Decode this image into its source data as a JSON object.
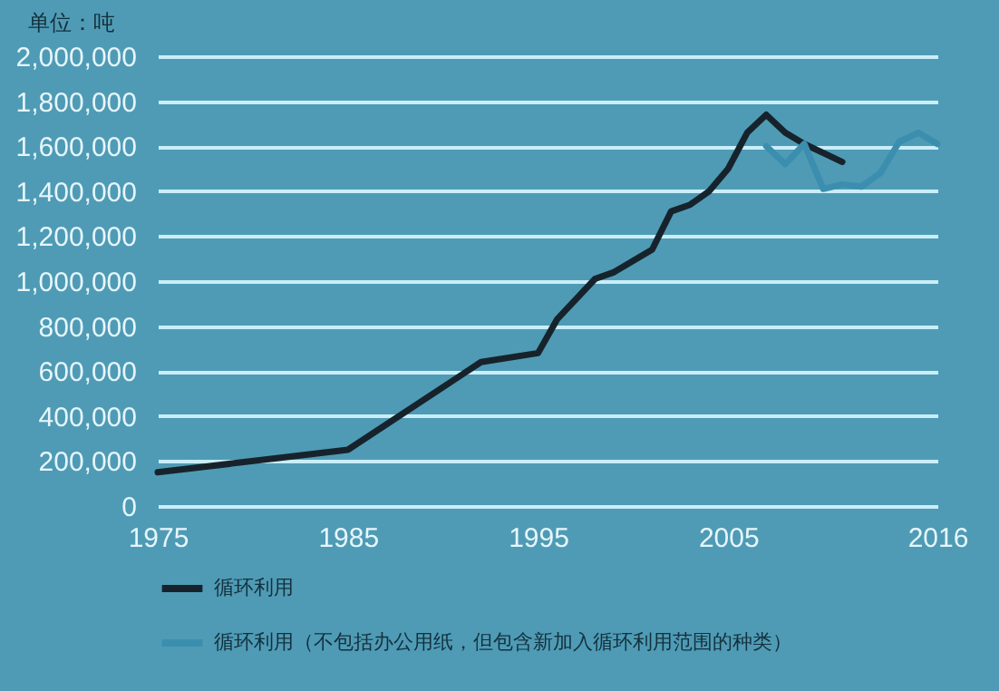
{
  "chart_data": {
    "type": "line",
    "ylabel": "单位：吨",
    "xlim": [
      1975,
      2016
    ],
    "xticks": [
      1975,
      1985,
      1995,
      2005,
      2016
    ],
    "ylim": [
      0,
      2000000
    ],
    "yticks": [
      0,
      {
        "value": 200000,
        "label": "200,000"
      },
      {
        "value": 400000,
        "label": "400,000"
      },
      {
        "value": 600000,
        "label": "600,000"
      },
      {
        "value": 800000,
        "label": "800,000"
      },
      {
        "value": 1000000,
        "label": "1,000,000"
      },
      {
        "value": 1200000,
        "label": "1,200,000"
      },
      {
        "value": 1400000,
        "label": "1,400,000"
      },
      {
        "value": 1600000,
        "label": "1,600,000"
      },
      {
        "value": 1800000,
        "label": "1,800,000"
      },
      {
        "value": 2000000,
        "label": "2,000,000"
      }
    ],
    "grid": "y",
    "legend": "bottom left",
    "line_style": "solid",
    "marker": "none",
    "series": [
      {
        "name": "循环利用",
        "color": "#17232c",
        "x": [
          1975,
          1985,
          1992,
          1995,
          1996,
          1998,
          1999,
          2001,
          2002,
          2003,
          2004,
          2005,
          2006,
          2007,
          2008,
          2009,
          2010,
          2011
        ],
        "values": [
          150000,
          250000,
          640000,
          680000,
          830000,
          1010000,
          1040000,
          1140000,
          1310000,
          1340000,
          1400000,
          1500000,
          1660000,
          1740000,
          1660000,
          1610000,
          1570000,
          1530000
        ]
      },
      {
        "name": "循环利用（不包括办公用纸，但包含新加入循环利用范围的种类）",
        "color": "#3b8eae",
        "x": [
          2007,
          2008,
          2009,
          2010,
          2011,
          2012,
          2013,
          2014,
          2015,
          2016
        ],
        "values": [
          1600000,
          1520000,
          1610000,
          1410000,
          1430000,
          1420000,
          1480000,
          1620000,
          1660000,
          1610000
        ]
      }
    ]
  }
}
